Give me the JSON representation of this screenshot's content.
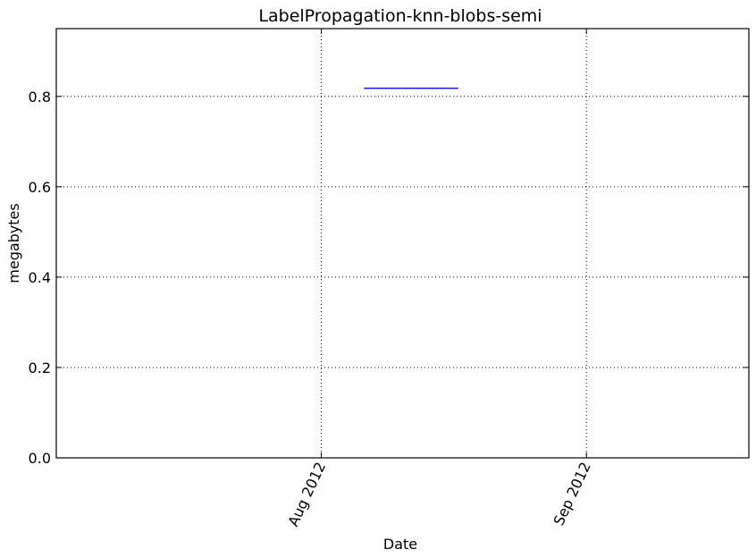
{
  "chart_data": {
    "type": "line",
    "title": "LabelPropagation-knn-blobs-semi",
    "xlabel": "Date",
    "ylabel": "megabytes",
    "x_axis_type": "date",
    "xlim": [
      "2012-07-01",
      "2012-09-20"
    ],
    "ylim": [
      0,
      0.95
    ],
    "x_ticks": [
      {
        "value": "2012-08-01",
        "label": "Aug 2012"
      },
      {
        "value": "2012-09-01",
        "label": "Sep 2012"
      }
    ],
    "y_ticks": [
      {
        "value": 0.0,
        "label": "0.0"
      },
      {
        "value": 0.2,
        "label": "0.2"
      },
      {
        "value": 0.4,
        "label": "0.4"
      },
      {
        "value": 0.6,
        "label": "0.6"
      },
      {
        "value": 0.8,
        "label": "0.8"
      }
    ],
    "grid": true,
    "series": [
      {
        "color": "#0000ff",
        "points": [
          {
            "x": "2012-08-06",
            "y": 0.818
          },
          {
            "x": "2012-08-17",
            "y": 0.818
          }
        ]
      }
    ]
  }
}
